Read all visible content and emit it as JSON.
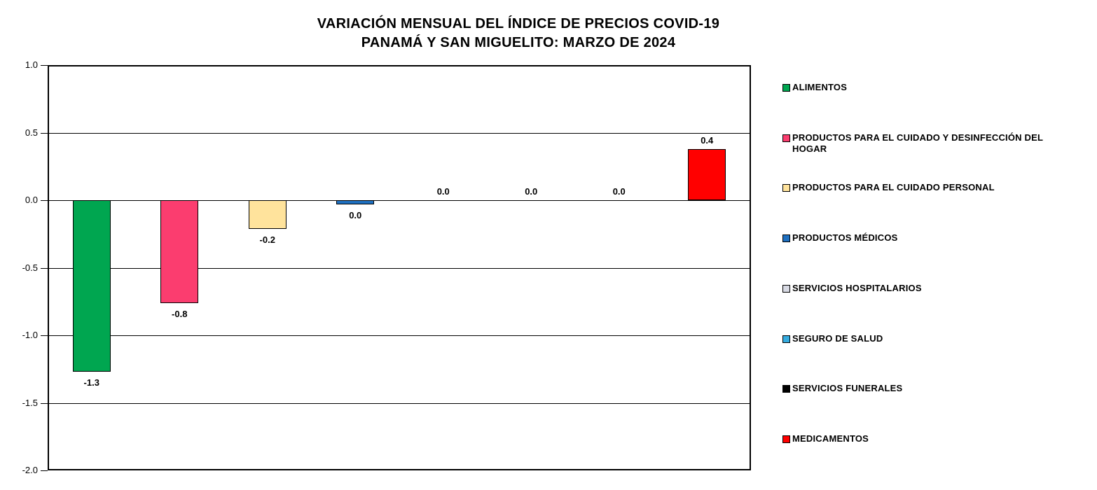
{
  "title": {
    "line1": "VARIACIÓN MENSUAL DEL ÍNDICE DE PRECIOS COVID-19",
    "line2": "PANAMÁ Y SAN MIGUELITO: MARZO DE 2024"
  },
  "chart_data": {
    "type": "bar",
    "title": "VARIACIÓN MENSUAL DEL ÍNDICE DE PRECIOS COVID-19 PANAMÁ Y SAN MIGUELITO: MARZO DE 2024",
    "categories": [
      "ALIMENTOS",
      "PRODUCTOS PARA EL CUIDADO Y DESINFECCIÓN DEL HOGAR",
      "PRODUCTOS PARA EL CUIDADO PERSONAL",
      "PRODUCTOS MÉDICOS",
      "SERVICIOS HOSPITALARIOS",
      "SEGURO DE SALUD",
      "SERVICIOS FUNERALES",
      "MEDICAMENTOS"
    ],
    "values": [
      -1.3,
      -0.8,
      -0.2,
      0.0,
      0.0,
      0.0,
      0.0,
      0.4
    ],
    "value_labels": [
      "-1.3",
      "-0.8",
      "-0.2",
      "0.0",
      "0.0",
      "0.0",
      "0.0",
      "0.4"
    ],
    "values_precise": [
      -1.27,
      -0.76,
      -0.21,
      -0.03,
      0,
      0,
      0,
      0.38
    ],
    "colors": [
      "#00A650",
      "#FB3D6F",
      "#FFE39C",
      "#1F70C0",
      "#D8DAE4",
      "#35ACE0",
      "#000000",
      "#FF0000"
    ],
    "ylim": [
      -2.0,
      1.0
    ],
    "y_ticks": [
      "1.0",
      "0.5",
      "0.0",
      "-0.5",
      "-1.0",
      "-1.5",
      "-2.0"
    ],
    "grid": true,
    "legend_position": "right",
    "xlabel": "",
    "ylabel": ""
  }
}
